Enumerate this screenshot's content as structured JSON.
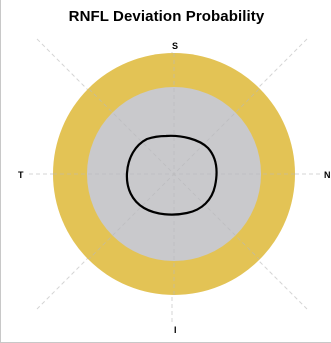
{
  "title": "RNFL Deviation Probability",
  "directions": {
    "superior": "S",
    "temporal": "T",
    "nasal": "N",
    "inferior": "I"
  },
  "colors": {
    "outer_ring": "#e3c355",
    "inner_disc": "#c9c9cc",
    "contour": "#000000",
    "guide_lines": "#d4d4d4"
  }
}
